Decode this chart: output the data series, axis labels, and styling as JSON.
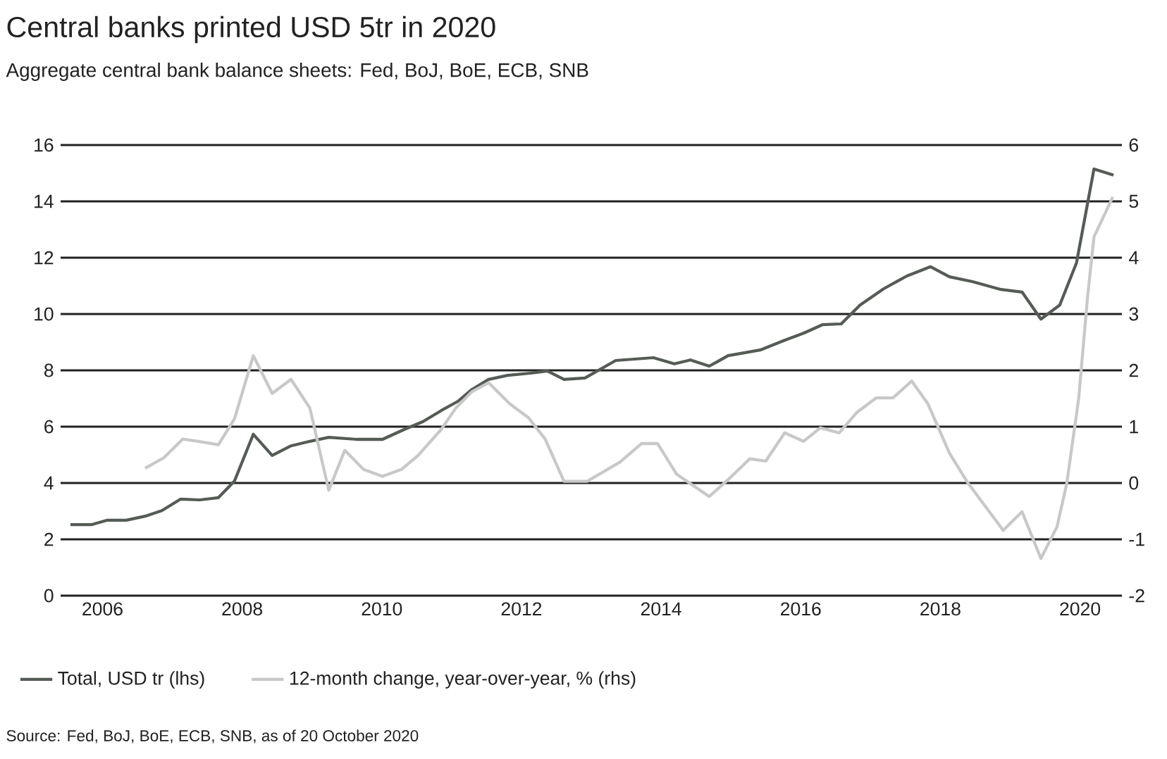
{
  "chart_data": {
    "type": "line",
    "title": "Central banks printed USD 5tr in 2020",
    "subtitle": "Aggregate central bank balance sheets: Fed, BoJ, BoE, ECB, SNB",
    "series": [
      {
        "name": "Total, USD tr (lhs)",
        "color": "#555b55",
        "x": [
          2005.54,
          2005.84,
          2006.07,
          2006.34,
          2006.61,
          2006.85,
          2007.12,
          2007.39,
          2007.66,
          2007.89,
          2008.16,
          2008.43,
          2008.7,
          2008.97,
          2009.24,
          2009.64,
          2010.01,
          2010.32,
          2010.59,
          2010.85,
          2011.09,
          2011.29,
          2011.53,
          2011.8,
          2012.13,
          2012.37,
          2012.61,
          2012.91,
          2013.35,
          2013.89,
          2014.19,
          2014.42,
          2014.69,
          2014.96,
          2015.43,
          2015.77,
          2016.04,
          2016.31,
          2016.58,
          2016.85,
          2017.19,
          2017.52,
          2017.86,
          2018.13,
          2018.46,
          2018.87,
          2019.17,
          2019.44,
          2019.71,
          2019.95,
          2020.2,
          2020.48
        ],
        "values": [
          2.52,
          2.52,
          2.68,
          2.68,
          2.82,
          3.02,
          3.43,
          3.4,
          3.48,
          4.07,
          5.73,
          4.98,
          5.32,
          5.48,
          5.62,
          5.55,
          5.55,
          5.9,
          6.18,
          6.57,
          6.9,
          7.32,
          7.68,
          7.82,
          7.9,
          7.98,
          7.68,
          7.73,
          8.35,
          8.45,
          8.23,
          8.37,
          8.15,
          8.52,
          8.73,
          9.07,
          9.32,
          9.62,
          9.65,
          10.32,
          10.9,
          11.35,
          11.68,
          11.32,
          11.15,
          10.87,
          10.78,
          9.82,
          10.32,
          11.82,
          15.15,
          14.93
        ]
      },
      {
        "name": "12-month change, year-over-year, % (rhs)",
        "color": "#c8c8c8",
        "axis": "y2",
        "x": [
          2006.61,
          2006.88,
          2007.15,
          2007.42,
          2007.66,
          2007.89,
          2008.16,
          2008.43,
          2008.7,
          2008.97,
          2009.24,
          2009.47,
          2009.74,
          2010.01,
          2010.28,
          2010.52,
          2010.85,
          2011.06,
          2011.29,
          2011.53,
          2011.83,
          2012.1,
          2012.34,
          2012.61,
          2012.94,
          2013.41,
          2013.72,
          2013.95,
          2014.22,
          2014.69,
          2014.96,
          2015.27,
          2015.5,
          2015.77,
          2016.04,
          2016.28,
          2016.55,
          2016.81,
          2017.08,
          2017.32,
          2017.59,
          2017.82,
          2018.13,
          2018.4,
          2018.9,
          2019.17,
          2019.44,
          2019.67,
          2019.81,
          2019.98,
          2020.11,
          2020.2,
          2020.47
        ],
        "values": [
          0.26,
          0.45,
          0.78,
          0.73,
          0.68,
          1.14,
          2.26,
          1.59,
          1.84,
          1.33,
          -0.13,
          0.58,
          0.24,
          0.12,
          0.24,
          0.49,
          0.95,
          1.33,
          1.62,
          1.78,
          1.41,
          1.16,
          0.78,
          0.03,
          0.03,
          0.37,
          0.7,
          0.7,
          0.16,
          -0.24,
          0.06,
          0.43,
          0.39,
          0.89,
          0.74,
          0.98,
          0.89,
          1.26,
          1.51,
          1.51,
          1.81,
          1.41,
          0.53,
          -0.01,
          -0.84,
          -0.51,
          -1.34,
          -0.78,
          -0.01,
          1.49,
          3.33,
          4.37,
          5.08
        ]
      }
    ],
    "xlim": [
      2005.4,
      2020.6
    ],
    "xticks": [
      2006,
      2008,
      2010,
      2012,
      2014,
      2016,
      2018,
      2020
    ],
    "ylim": [
      0,
      16
    ],
    "yticks": [
      0,
      2,
      4,
      6,
      8,
      10,
      12,
      14,
      16
    ],
    "y2lim": [
      -2,
      6
    ],
    "y2ticks": [
      -2,
      -1,
      0,
      1,
      2,
      3,
      4,
      5,
      6
    ],
    "grid": "y",
    "legend": "bottom",
    "annotations": [
      "Source: Fed, BoJ, BoE, ECB, SNB, as of 20 October 2020"
    ]
  }
}
